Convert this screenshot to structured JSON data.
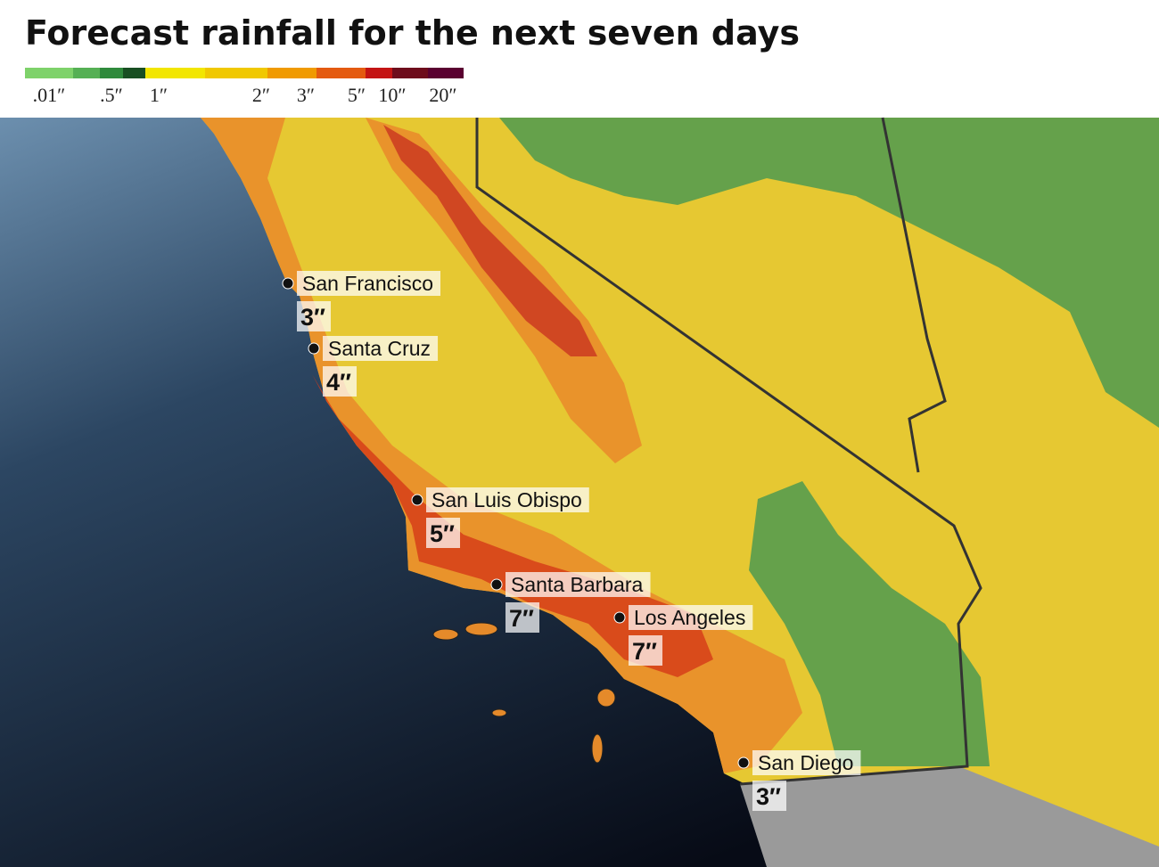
{
  "header": {
    "title": "Forecast rainfall for the next seven days"
  },
  "legend": {
    "labels": [
      ".01″",
      ".5″",
      "1″",
      "2″",
      "3″",
      "5″",
      "10″",
      "20″"
    ],
    "colors": [
      "#7ed26a",
      "#55b054",
      "#2f8a3c",
      "#184f22",
      "#f2e600",
      "#f0c800",
      "#f09a00",
      "#e45a10",
      "#c41414",
      "#6e0c1c",
      "#5a0030"
    ]
  },
  "cities": [
    {
      "name": "San Francisco",
      "rainfall": "3″"
    },
    {
      "name": "Santa Cruz",
      "rainfall": "4″"
    },
    {
      "name": "San Luis Obispo",
      "rainfall": "5″"
    },
    {
      "name": "Santa Barbara",
      "rainfall": "7″"
    },
    {
      "name": "Los Angeles",
      "rainfall": "7″"
    },
    {
      "name": "San Diego",
      "rainfall": "3″"
    }
  ]
}
